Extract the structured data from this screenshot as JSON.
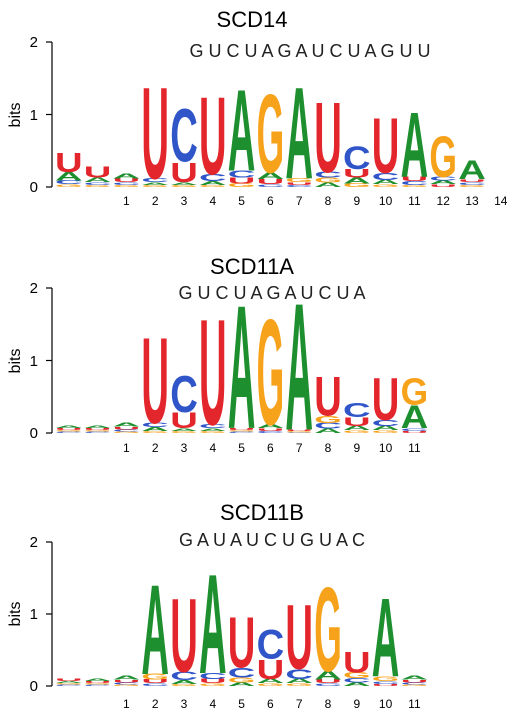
{
  "colors": {
    "A": "#1e8f2f",
    "C": "#2f55c8",
    "G": "#f7a21b",
    "U": "#e3262b"
  },
  "chart_data": [
    {
      "type": "sequence-logo",
      "title": "SCD14",
      "consensus": "G U C U A G A U C U A G U U",
      "ylabel": "bits",
      "yticks": [
        "0",
        "1",
        "2"
      ],
      "ylim": [
        0,
        2
      ],
      "positions": [
        {
          "label": "",
          "letters": [
            [
              "U",
              0.28
            ],
            [
              "A",
              0.12
            ],
            [
              "C",
              0.05
            ],
            [
              "G",
              0.04
            ]
          ]
        },
        {
          "label": "",
          "letters": [
            [
              "U",
              0.16
            ],
            [
              "A",
              0.06
            ],
            [
              "C",
              0.04
            ],
            [
              "G",
              0.03
            ]
          ]
        },
        {
          "label": "1",
          "letters": [
            [
              "A",
              0.07
            ],
            [
              "U",
              0.05
            ],
            [
              "C",
              0.04
            ],
            [
              "G",
              0.03
            ]
          ]
        },
        {
          "label": "2",
          "letters": [
            [
              "U",
              1.3
            ],
            [
              "C",
              0.05
            ],
            [
              "A",
              0.04
            ],
            [
              "G",
              0.03
            ]
          ]
        },
        {
          "label": "3",
          "letters": [
            [
              "C",
              0.75
            ],
            [
              "U",
              0.28
            ],
            [
              "A",
              0.04
            ],
            [
              "G",
              0.03
            ]
          ]
        },
        {
          "label": "4",
          "letters": [
            [
              "U",
              1.1
            ],
            [
              "C",
              0.1
            ],
            [
              "A",
              0.05
            ],
            [
              "G",
              0.03
            ]
          ]
        },
        {
          "label": "5",
          "letters": [
            [
              "A",
              1.15
            ],
            [
              "C",
              0.1
            ],
            [
              "U",
              0.08
            ],
            [
              "G",
              0.05
            ]
          ]
        },
        {
          "label": "6",
          "letters": [
            [
              "G",
              1.12
            ],
            [
              "A",
              0.09
            ],
            [
              "U",
              0.07
            ],
            [
              "C",
              0.04
            ]
          ]
        },
        {
          "label": "7",
          "letters": [
            [
              "A",
              1.3
            ],
            [
              "G",
              0.05
            ],
            [
              "U",
              0.04
            ],
            [
              "C",
              0.03
            ]
          ]
        },
        {
          "label": "8",
          "letters": [
            [
              "U",
              1.0
            ],
            [
              "C",
              0.08
            ],
            [
              "G",
              0.07
            ],
            [
              "A",
              0.06
            ]
          ]
        },
        {
          "label": "9",
          "letters": [
            [
              "C",
              0.32
            ],
            [
              "U",
              0.12
            ],
            [
              "A",
              0.08
            ],
            [
              "G",
              0.05
            ]
          ]
        },
        {
          "label": "10",
          "letters": [
            [
              "U",
              0.78
            ],
            [
              "C",
              0.1
            ],
            [
              "A",
              0.06
            ],
            [
              "G",
              0.04
            ]
          ]
        },
        {
          "label": "11",
          "letters": [
            [
              "A",
              0.92
            ],
            [
              "U",
              0.06
            ],
            [
              "C",
              0.05
            ],
            [
              "G",
              0.03
            ]
          ]
        },
        {
          "label": "12",
          "letters": [
            [
              "G",
              0.58
            ],
            [
              "A",
              0.05
            ],
            [
              "C",
              0.05
            ],
            [
              "U",
              0.04
            ]
          ]
        },
        {
          "label": "13",
          "letters": [
            [
              "A",
              0.27
            ],
            [
              "C",
              0.04
            ],
            [
              "U",
              0.04
            ],
            [
              "G",
              0.03
            ]
          ]
        },
        {
          "label": "14",
          "letters": []
        }
      ]
    },
    {
      "type": "sequence-logo",
      "title": "SCD11A",
      "consensus": "G U C U A G A U C U A",
      "ylabel": "bits",
      "yticks": [
        "0",
        "1",
        "2"
      ],
      "ylim": [
        0,
        2
      ],
      "positions": [
        {
          "label": "",
          "letters": [
            [
              "A",
              0.04
            ],
            [
              "U",
              0.03
            ],
            [
              "C",
              0.02
            ],
            [
              "G",
              0.02
            ]
          ]
        },
        {
          "label": "",
          "letters": [
            [
              "A",
              0.04
            ],
            [
              "U",
              0.03
            ],
            [
              "C",
              0.02
            ],
            [
              "G",
              0.02
            ]
          ]
        },
        {
          "label": "1",
          "letters": [
            [
              "A",
              0.05
            ],
            [
              "U",
              0.04
            ],
            [
              "C",
              0.03
            ],
            [
              "G",
              0.02
            ]
          ]
        },
        {
          "label": "2",
          "letters": [
            [
              "U",
              1.22
            ],
            [
              "C",
              0.06
            ],
            [
              "A",
              0.05
            ],
            [
              "G",
              0.03
            ]
          ]
        },
        {
          "label": "3",
          "letters": [
            [
              "C",
              0.52
            ],
            [
              "U",
              0.22
            ],
            [
              "A",
              0.04
            ],
            [
              "G",
              0.03
            ]
          ]
        },
        {
          "label": "4",
          "letters": [
            [
              "U",
              1.5
            ],
            [
              "C",
              0.05
            ],
            [
              "A",
              0.04
            ],
            [
              "G",
              0.03
            ]
          ]
        },
        {
          "label": "5",
          "letters": [
            [
              "A",
              1.75
            ],
            [
              "U",
              0.03
            ],
            [
              "C",
              0.02
            ],
            [
              "G",
              0.02
            ]
          ]
        },
        {
          "label": "6",
          "letters": [
            [
              "G",
              1.5
            ],
            [
              "A",
              0.05
            ],
            [
              "U",
              0.04
            ],
            [
              "C",
              0.03
            ]
          ]
        },
        {
          "label": "7",
          "letters": [
            [
              "A",
              1.8
            ],
            [
              "G",
              0.02
            ],
            [
              "U",
              0.02
            ],
            [
              "C",
              0.01
            ]
          ]
        },
        {
          "label": "8",
          "letters": [
            [
              "U",
              0.55
            ],
            [
              "G",
              0.1
            ],
            [
              "C",
              0.08
            ],
            [
              "A",
              0.06
            ]
          ]
        },
        {
          "label": "9",
          "letters": [
            [
              "C",
              0.2
            ],
            [
              "U",
              0.12
            ],
            [
              "A",
              0.06
            ],
            [
              "G",
              0.04
            ]
          ]
        },
        {
          "label": "10",
          "letters": [
            [
              "U",
              0.6
            ],
            [
              "C",
              0.08
            ],
            [
              "A",
              0.06
            ],
            [
              "G",
              0.04
            ]
          ]
        },
        {
          "label": "11",
          "letters": [
            [
              "G",
              0.38
            ],
            [
              "A",
              0.32
            ],
            [
              "C",
              0.04
            ],
            [
              "U",
              0.03
            ]
          ]
        }
      ]
    },
    {
      "type": "sequence-logo",
      "title": "SCD11B",
      "consensus": "G A U A U C U G U A C",
      "ylabel": "bits",
      "yticks": [
        "0",
        "1",
        "2"
      ],
      "ylim": [
        0,
        2
      ],
      "positions": [
        {
          "label": "",
          "letters": [
            [
              "U",
              0.04
            ],
            [
              "A",
              0.03
            ],
            [
              "C",
              0.02
            ],
            [
              "G",
              0.02
            ]
          ]
        },
        {
          "label": "",
          "letters": [
            [
              "A",
              0.04
            ],
            [
              "U",
              0.03
            ],
            [
              "C",
              0.02
            ],
            [
              "G",
              0.02
            ]
          ]
        },
        {
          "label": "1",
          "letters": [
            [
              "A",
              0.05
            ],
            [
              "U",
              0.04
            ],
            [
              "C",
              0.03
            ],
            [
              "G",
              0.02
            ]
          ]
        },
        {
          "label": "2",
          "letters": [
            [
              "A",
              1.28
            ],
            [
              "G",
              0.08
            ],
            [
              "U",
              0.05
            ],
            [
              "C",
              0.04
            ]
          ]
        },
        {
          "label": "3",
          "letters": [
            [
              "U",
              1.05
            ],
            [
              "C",
              0.12
            ],
            [
              "A",
              0.05
            ],
            [
              "G",
              0.03
            ]
          ]
        },
        {
          "label": "4",
          "letters": [
            [
              "A",
              1.42
            ],
            [
              "C",
              0.08
            ],
            [
              "U",
              0.06
            ],
            [
              "G",
              0.04
            ]
          ]
        },
        {
          "label": "5",
          "letters": [
            [
              "U",
              0.72
            ],
            [
              "C",
              0.14
            ],
            [
              "G",
              0.07
            ],
            [
              "A",
              0.05
            ]
          ]
        },
        {
          "label": "6",
          "letters": [
            [
              "C",
              0.42
            ],
            [
              "U",
              0.28
            ],
            [
              "A",
              0.06
            ],
            [
              "G",
              0.04
            ]
          ]
        },
        {
          "label": "7",
          "letters": [
            [
              "U",
              0.92
            ],
            [
              "C",
              0.14
            ],
            [
              "A",
              0.06
            ],
            [
              "G",
              0.04
            ]
          ]
        },
        {
          "label": "8",
          "letters": [
            [
              "G",
              1.2
            ],
            [
              "A",
              0.12
            ],
            [
              "U",
              0.05
            ],
            [
              "C",
              0.04
            ]
          ]
        },
        {
          "label": "9",
          "letters": [
            [
              "U",
              0.3
            ],
            [
              "G",
              0.08
            ],
            [
              "C",
              0.06
            ],
            [
              "A",
              0.05
            ]
          ]
        },
        {
          "label": "10",
          "letters": [
            [
              "A",
              1.12
            ],
            [
              "G",
              0.06
            ],
            [
              "C",
              0.04
            ],
            [
              "U",
              0.03
            ]
          ]
        },
        {
          "label": "11",
          "letters": [
            [
              "A",
              0.05
            ],
            [
              "U",
              0.04
            ],
            [
              "C",
              0.03
            ],
            [
              "G",
              0.02
            ]
          ]
        }
      ]
    }
  ]
}
